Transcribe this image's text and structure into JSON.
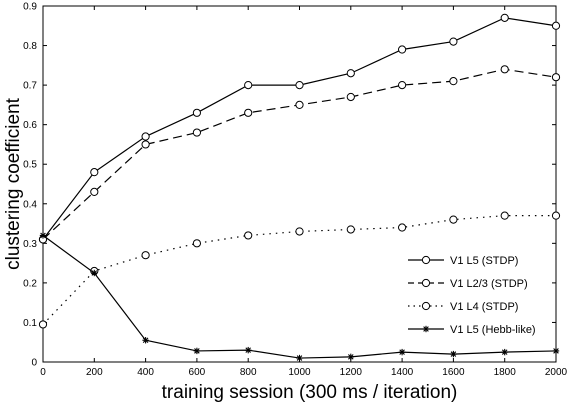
{
  "chart_data": {
    "type": "line",
    "title": "",
    "xlabel": "training session (300 ms / iteration)",
    "ylabel": "clustering coefficient",
    "xlim": [
      0,
      2000
    ],
    "ylim": [
      0,
      0.9
    ],
    "xticks": [
      "0",
      "200",
      "400",
      "600",
      "800",
      "1000",
      "1200",
      "1400",
      "1600",
      "1800",
      "2000"
    ],
    "yticks": [
      "0",
      "0.1",
      "0.2",
      "0.3",
      "0.4",
      "0.5",
      "0.6",
      "0.7",
      "0.8",
      "0.9"
    ],
    "grid": false,
    "legend_position": "bottom-right",
    "x": [
      0,
      200,
      400,
      600,
      800,
      1000,
      1200,
      1400,
      1600,
      1800,
      2000
    ],
    "series": [
      {
        "name": "V1 L5 (STDP)",
        "style": "solid",
        "marker": "circle",
        "values": [
          0.31,
          0.48,
          0.57,
          0.63,
          0.7,
          0.7,
          0.73,
          0.79,
          0.81,
          0.87,
          0.85
        ]
      },
      {
        "name": "V1 L2/3 (STDP)",
        "style": "dashed",
        "marker": "circle",
        "values": [
          0.31,
          0.43,
          0.55,
          0.58,
          0.63,
          0.65,
          0.67,
          0.7,
          0.71,
          0.74,
          0.72
        ]
      },
      {
        "name": "V1 L4 (STDP)",
        "style": "dotted",
        "marker": "circle",
        "values": [
          0.095,
          0.23,
          0.27,
          0.3,
          0.32,
          0.33,
          0.335,
          0.34,
          0.36,
          0.37,
          0.37
        ]
      },
      {
        "name": "V1 L5 (Hebb-like)",
        "style": "solid",
        "marker": "star",
        "values": [
          0.32,
          0.225,
          0.055,
          0.028,
          0.03,
          0.01,
          0.013,
          0.025,
          0.02,
          0.025,
          0.028
        ]
      }
    ]
  }
}
